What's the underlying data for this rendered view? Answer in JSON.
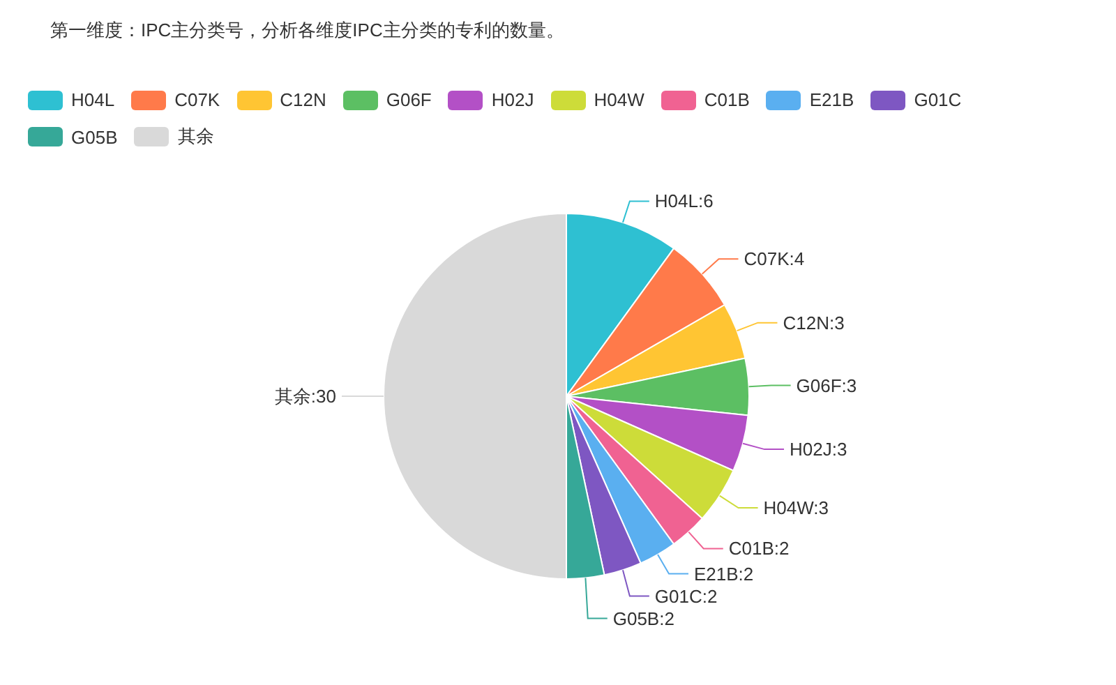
{
  "chart_data": {
    "type": "pie",
    "title": "第一维度：IPC主分类号，分析各维度IPC主分类的专利的数量。",
    "categories": [
      "H04L",
      "C07K",
      "C12N",
      "G06F",
      "H02J",
      "H04W",
      "C01B",
      "E21B",
      "G01C",
      "G05B",
      "其余"
    ],
    "values": [
      6,
      4,
      3,
      3,
      3,
      3,
      2,
      2,
      2,
      2,
      30
    ],
    "colors": [
      "#2ec0d2",
      "#ff7a4a",
      "#ffc533",
      "#5cbf63",
      "#b350c6",
      "#cddc39",
      "#f06292",
      "#5aaff0",
      "#7e57c2",
      "#36a898",
      "#d9d9d9"
    ],
    "value_labels": [
      "H04L:6",
      "C07K:4",
      "C12N:3",
      "G06F:3",
      "H02J:3",
      "H04W:3",
      "C01B:2",
      "E21B:2",
      "G01C:2",
      "G05B:2",
      "其余:30"
    ],
    "legend": "top"
  }
}
